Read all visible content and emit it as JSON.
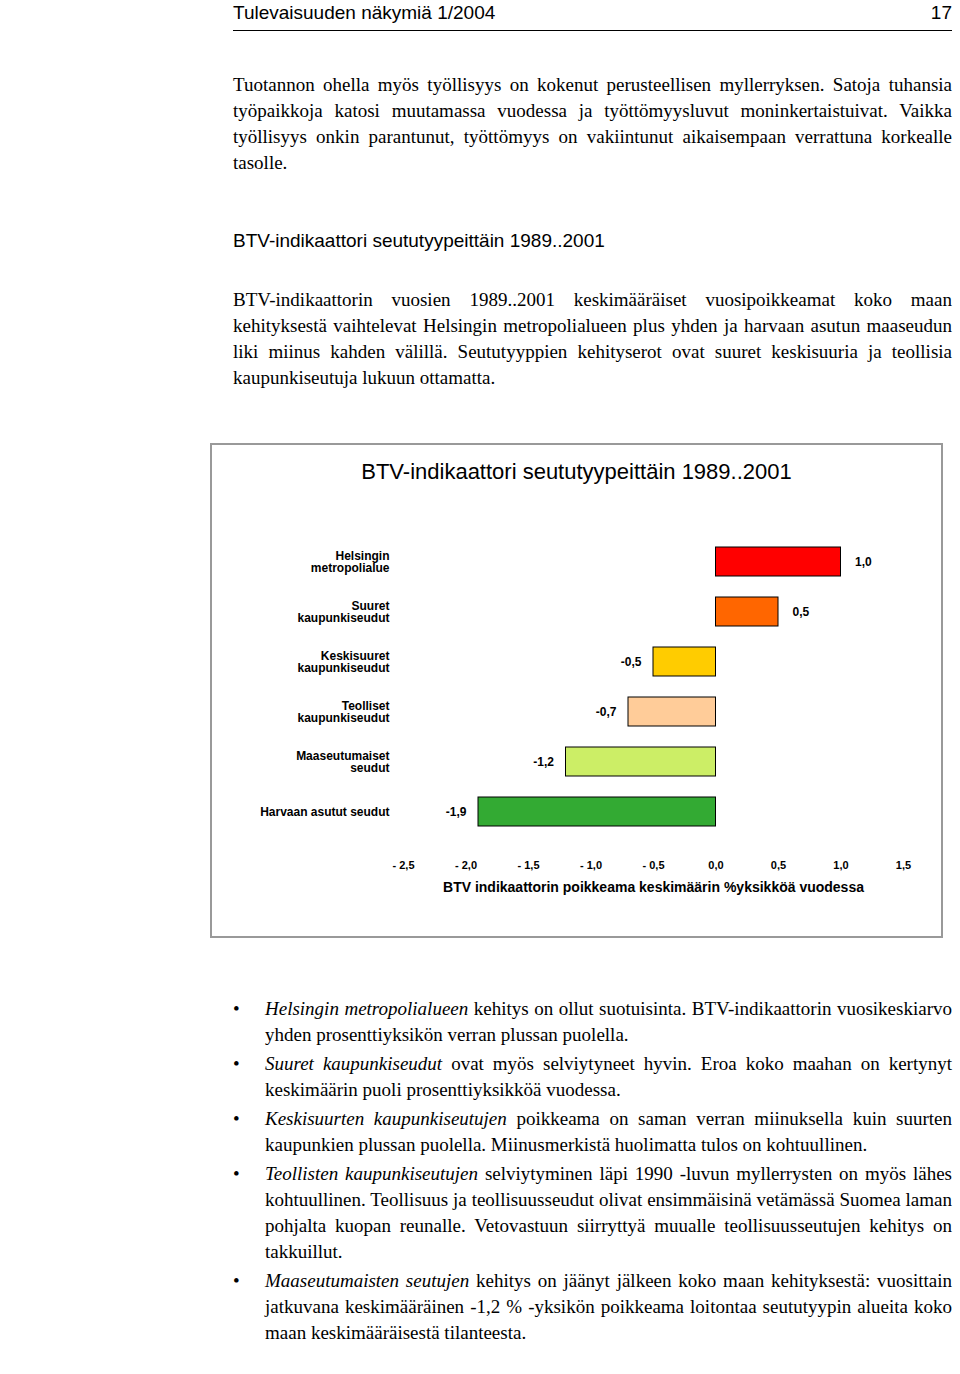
{
  "header": {
    "title": "Tulevaisuuden näkymiä 1/2004",
    "page": "17"
  },
  "paragraph_1": "Tuotannon ohella myös työllisyys on kokenut perusteellisen myllerryksen. Satoja tuhansia työpaikkoja katosi muutamassa vuodessa ja työttömyysluvut moninkertaistuivat. Vaikka työllisyys onkin parantunut, työttömyys on vakiintunut aikaisempaan verrattuna korkealle tasolle.",
  "heading": "BTV-indikaattori seututyypeittäin 1989..2001",
  "paragraph_2": "BTV-indikaattorin vuosien 1989..2001 keskimääräiset vuosipoikkeamat koko maan kehityksestä vaihtelevat Helsingin metropolialueen plus yhden ja harvaan asutun maaseudun liki miinus kahden välillä. Seututyyppien kehityserot ovat suuret keskisuuria ja teollisia kaupunkiseutuja lukuun ottamatta.",
  "chart_data": {
    "type": "bar",
    "orientation": "horizontal",
    "title": "BTV-indikaattori seututyypeittäin 1989..2001",
    "x_label": "BTV indikaattorin poikkeama keskimäärin %yksikköä vuodessa",
    "categories": [
      "Helsingin metropolialue",
      "Suuret kaupunkiseudut",
      "Keskisuuret kaupunkiseudut",
      "Teolliset kaupunkiseudut",
      "Maaseutumaiset seudut",
      "Harvaan asutut seudut"
    ],
    "values": [
      1.0,
      0.5,
      -0.5,
      -0.7,
      -1.2,
      -1.9
    ],
    "value_labels": [
      "1,0",
      "0,5",
      "-0,5",
      "-0,7",
      "-1,2",
      "-1,9"
    ],
    "colors": [
      "#ff0000",
      "#ff6600",
      "#ffcc00",
      "#ffcc99",
      "#ccee66",
      "#33aa33"
    ],
    "data_labels": true,
    "grid": false,
    "xlim": [
      -2.5,
      1.5
    ],
    "xticks": [
      {
        "value": -2.5,
        "label": "- 2,5"
      },
      {
        "value": -2.0,
        "label": "- 2,0"
      },
      {
        "value": -1.5,
        "label": "- 1,5"
      },
      {
        "value": -1.0,
        "label": "- 1,0"
      },
      {
        "value": -0.5,
        "label": "- 0,5"
      },
      {
        "value": 0,
        "label": "0,0"
      },
      {
        "value": 0.5,
        "label": "0,5"
      },
      {
        "value": 1.0,
        "label": "1,0"
      },
      {
        "value": 1.5,
        "label": "1,5"
      }
    ]
  },
  "bullets": [
    {
      "lead": "Helsingin metropolialueen",
      "text": " kehitys on ollut suotuisinta. BTV-indikaattorin vuosikeskiarvo yhden prosenttiyksikön verran plussan puolella."
    },
    {
      "lead": "Suuret kaupunkiseudut",
      "text": " ovat myös selviytyneet hyvin. Eroa koko maahan on kertynyt keskimäärin puoli prosenttiyksikköä vuodessa."
    },
    {
      "lead": "Keskisuurten kaupunkiseutujen",
      "text": " poikkeama on saman verran miinuksella kuin suurten kaupunkien plussan puolella. Miinusmerkistä huolimatta tulos on kohtuullinen."
    },
    {
      "lead": "Teollisten kaupunkiseutujen",
      "text": " selviytyminen läpi 1990 -luvun myllerrysten on myös lähes kohtuullinen. Teollisuus ja teollisuusseudut olivat ensimmäisinä vetämässä Suomea laman pohjalta kuopan reunalle. Vetovastuun siirryttyä muualle teollisuusseutujen kehitys on takkuillut."
    },
    {
      "lead": "Maaseutumaisten seutujen",
      "text": " kehitys on jäänyt jälkeen koko maan kehityksestä: vuosittain jatkuvana keskimääräinen -1,2 % -yksikön poikkeama loitontaa seututyypin alueita koko maan keskimääräisestä tilanteesta."
    }
  ]
}
